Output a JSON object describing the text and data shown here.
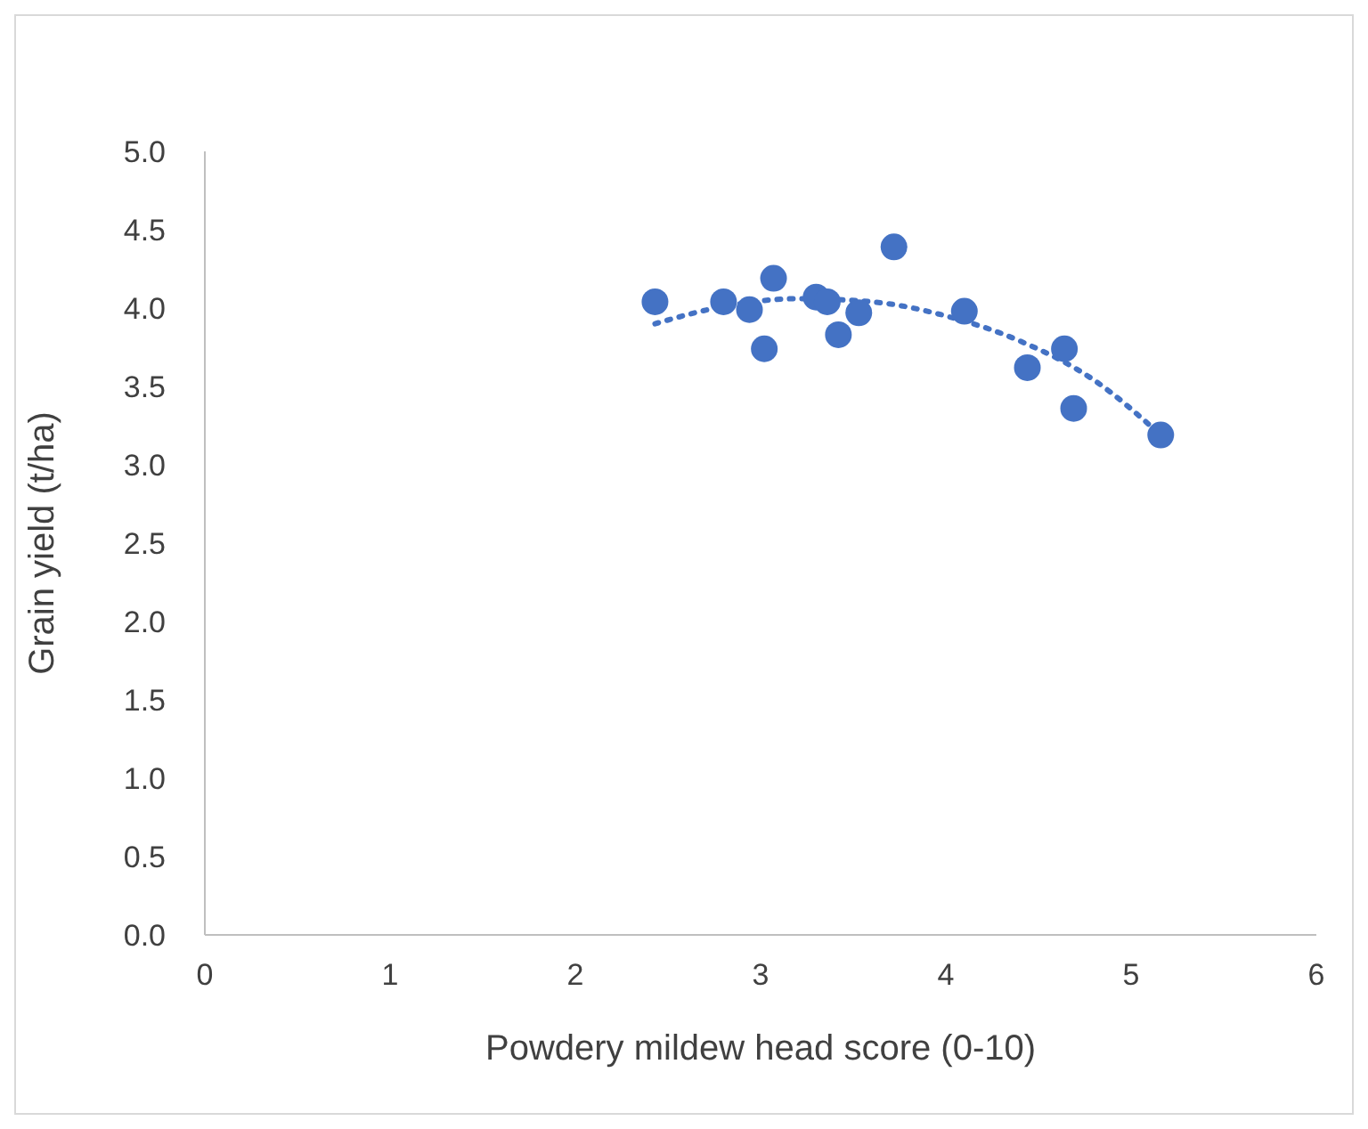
{
  "chart_data": {
    "type": "scatter",
    "xlabel": "Powdery mildew head score (0-10)",
    "ylabel": "Grain yield (t/ha)",
    "xlim": [
      0,
      6
    ],
    "xticks": [
      0,
      1,
      2,
      3,
      4,
      5,
      6
    ],
    "ylim": [
      0,
      5
    ],
    "yticks": [
      {
        "value": 0,
        "label": "0.0"
      },
      {
        "value": 0.5,
        "label": "0.5"
      },
      {
        "value": 1,
        "label": "1.0"
      },
      {
        "value": 1.5,
        "label": "1.5"
      },
      {
        "value": 2,
        "label": "2.0"
      },
      {
        "value": 2.5,
        "label": "2.5"
      },
      {
        "value": 3,
        "label": "3.0"
      },
      {
        "value": 3.5,
        "label": "3.5"
      },
      {
        "value": 4,
        "label": "4.0"
      },
      {
        "value": 4.5,
        "label": "4.5"
      },
      {
        "value": 5,
        "label": "5.0"
      }
    ],
    "grid": false,
    "legend": false,
    "series": [
      {
        "type": "scatter",
        "color": "#4472c4",
        "marker": "circle",
        "x": [
          2.43,
          2.8,
          2.94,
          3.07,
          3.02,
          3.3,
          3.36,
          3.42,
          3.53,
          3.72,
          4.1,
          4.44,
          4.64,
          4.69,
          5.16
        ],
        "values": [
          4.04,
          4.04,
          3.99,
          4.19,
          3.74,
          4.07,
          4.04,
          3.83,
          3.97,
          4.39,
          3.98,
          3.62,
          3.74,
          3.36,
          3.19
        ]
      },
      {
        "type": "line",
        "color": "#4472c4",
        "marker": "none",
        "line_style": "dotted",
        "x": [
          2.43,
          2.8,
          3.2,
          3.6,
          4.0,
          4.4,
          4.8,
          5.16
        ],
        "values": [
          3.9,
          4.01,
          4.06,
          4.04,
          3.95,
          3.79,
          3.54,
          3.19
        ]
      }
    ]
  }
}
